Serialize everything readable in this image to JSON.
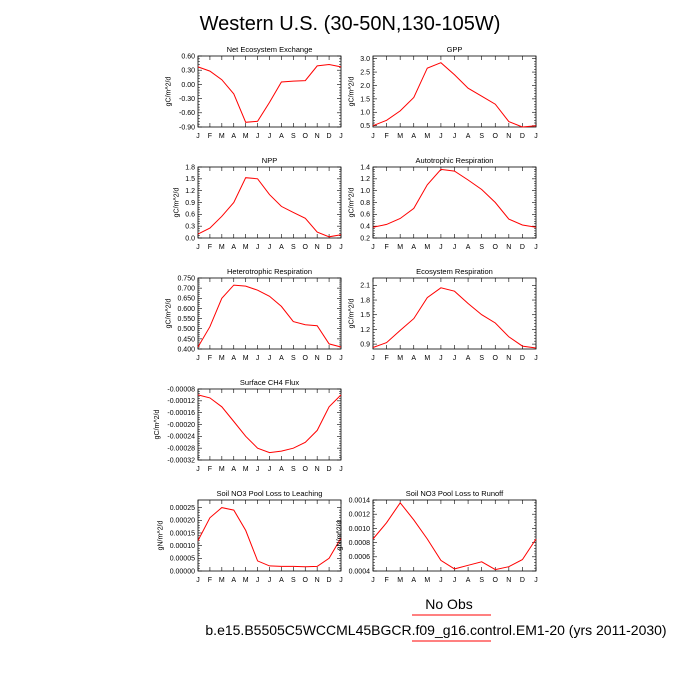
{
  "figure": {
    "title": "Western U.S. (30-50N,130-105W)",
    "line_color": "#ff0000",
    "legend": [
      {
        "label": "No Obs",
        "color": "#ff0000"
      },
      {
        "label": "b.e15.B5505C5WCCML45BGCR.f09_g16.control.EM1-20 (yrs 2011-2030)",
        "color": "#ff0000"
      }
    ]
  },
  "chart_data": [
    {
      "type": "line",
      "title": "Net Ecosystem Exchange",
      "ylabel": "gC/m^2/d",
      "categories": [
        "J",
        "F",
        "M",
        "A",
        "M",
        "J",
        "J",
        "A",
        "S",
        "O",
        "N",
        "D",
        "J"
      ],
      "ylim": [
        -0.9,
        0.6
      ],
      "yticks": [
        0.6,
        0.3,
        0.0,
        -0.3,
        -0.6,
        -0.9
      ],
      "ytick_labels": [
        "0.60",
        "0.30",
        "0.00",
        "-0.30",
        "-0.60",
        "-0.90"
      ],
      "values": [
        0.37,
        0.28,
        0.1,
        -0.2,
        -0.8,
        -0.78,
        -0.38,
        0.05,
        0.07,
        0.08,
        0.39,
        0.42,
        0.37
      ]
    },
    {
      "type": "line",
      "title": "GPP",
      "ylabel": "gC/m^2/d",
      "categories": [
        "J",
        "F",
        "M",
        "A",
        "M",
        "J",
        "J",
        "A",
        "S",
        "O",
        "N",
        "D",
        "J"
      ],
      "ylim": [
        0.45,
        3.1
      ],
      "yticks": [
        3.0,
        2.5,
        2.0,
        1.5,
        1.0,
        0.5
      ],
      "ytick_labels": [
        "3.0",
        "2.5",
        "2.0",
        "1.5",
        "1.0",
        "0.5"
      ],
      "values": [
        0.5,
        0.7,
        1.05,
        1.55,
        2.65,
        2.85,
        2.4,
        1.9,
        1.6,
        1.3,
        0.65,
        0.45,
        0.5
      ]
    },
    {
      "type": "line",
      "title": "NPP",
      "ylabel": "gC/m^2/d",
      "categories": [
        "J",
        "F",
        "M",
        "A",
        "M",
        "J",
        "J",
        "A",
        "S",
        "O",
        "N",
        "D",
        "J"
      ],
      "ylim": [
        0.0,
        1.8
      ],
      "yticks": [
        1.8,
        1.5,
        1.2,
        0.9,
        0.6,
        0.3,
        0.0
      ],
      "ytick_labels": [
        "1.8",
        "1.5",
        "1.2",
        "0.9",
        "0.6",
        "0.3",
        "0.0"
      ],
      "values": [
        0.1,
        0.25,
        0.55,
        0.9,
        1.53,
        1.5,
        1.1,
        0.8,
        0.65,
        0.5,
        0.15,
        0.03,
        0.08
      ]
    },
    {
      "type": "line",
      "title": "Autotrophic Respiration",
      "ylabel": "gC/m^2/d",
      "categories": [
        "J",
        "F",
        "M",
        "A",
        "M",
        "J",
        "J",
        "A",
        "S",
        "O",
        "N",
        "D",
        "J"
      ],
      "ylim": [
        0.2,
        1.4
      ],
      "yticks": [
        1.4,
        1.2,
        1.0,
        0.8,
        0.6,
        0.4,
        0.2
      ],
      "ytick_labels": [
        "1.4",
        "1.2",
        "1.0",
        "0.8",
        "0.6",
        "0.4",
        "0.2"
      ],
      "values": [
        0.38,
        0.43,
        0.53,
        0.7,
        1.1,
        1.36,
        1.33,
        1.18,
        1.02,
        0.8,
        0.52,
        0.42,
        0.38
      ]
    },
    {
      "type": "line",
      "title": "Heterotrophic Respiration",
      "ylabel": "gC/m^2/d",
      "categories": [
        "J",
        "F",
        "M",
        "A",
        "M",
        "J",
        "J",
        "A",
        "S",
        "O",
        "N",
        "D",
        "J"
      ],
      "ylim": [
        0.4,
        0.75
      ],
      "yticks": [
        0.75,
        0.7,
        0.65,
        0.6,
        0.55,
        0.5,
        0.45,
        0.4
      ],
      "ytick_labels": [
        "0.750",
        "0.700",
        "0.650",
        "0.600",
        "0.550",
        "0.500",
        "0.450",
        "0.400"
      ],
      "values": [
        0.41,
        0.51,
        0.65,
        0.715,
        0.71,
        0.69,
        0.66,
        0.61,
        0.535,
        0.52,
        0.515,
        0.425,
        0.41
      ]
    },
    {
      "type": "line",
      "title": "Ecosystem Respiration",
      "ylabel": "gC/m^2/d",
      "categories": [
        "J",
        "F",
        "M",
        "A",
        "M",
        "J",
        "J",
        "A",
        "S",
        "O",
        "N",
        "D",
        "J"
      ],
      "ylim": [
        0.8,
        2.25
      ],
      "yticks": [
        2.1,
        1.8,
        1.5,
        1.2,
        0.9
      ],
      "ytick_labels": [
        "2.1",
        "1.8",
        "1.5",
        "1.2",
        "0.9"
      ],
      "values": [
        0.83,
        0.93,
        1.18,
        1.42,
        1.85,
        2.05,
        1.98,
        1.73,
        1.5,
        1.33,
        1.05,
        0.86,
        0.82
      ]
    },
    {
      "type": "line",
      "title": "Surface CH4 Flux",
      "ylabel": "gC/m^2/d",
      "categories": [
        "J",
        "F",
        "M",
        "A",
        "M",
        "J",
        "J",
        "A",
        "S",
        "O",
        "N",
        "D",
        "J"
      ],
      "ylim": [
        -0.00032,
        -8e-05
      ],
      "yticks": [
        -8e-05,
        -0.00012,
        -0.00016,
        -0.0002,
        -0.00024,
        -0.00028,
        -0.00032
      ],
      "ytick_labels": [
        "-0.00008",
        "-0.00012",
        "-0.00016",
        "-0.00020",
        "-0.00024",
        "-0.00028",
        "-0.00032"
      ],
      "values": [
        -0.0001,
        -0.00011,
        -0.00014,
        -0.00019,
        -0.00024,
        -0.00028,
        -0.000295,
        -0.00029,
        -0.00028,
        -0.00026,
        -0.00022,
        -0.00014,
        -0.0001
      ]
    },
    {
      "type": "line",
      "title": "Soil NO3 Pool Loss to Leaching",
      "ylabel": "gN/m^2/d",
      "categories": [
        "J",
        "F",
        "M",
        "A",
        "M",
        "J",
        "J",
        "A",
        "S",
        "O",
        "N",
        "D",
        "J"
      ],
      "ylim": [
        0.0,
        0.00028
      ],
      "yticks": [
        0.00025,
        0.0002,
        0.00015,
        0.0001,
        5e-05,
        0.0
      ],
      "ytick_labels": [
        "0.00025",
        "0.00020",
        "0.00015",
        "0.00010",
        "0.00005",
        "0.00000"
      ],
      "values": [
        0.00012,
        0.00021,
        0.00025,
        0.00024,
        0.00016,
        4e-05,
        2e-05,
        1.8e-05,
        1.8e-05,
        1.7e-05,
        1.8e-05,
        5e-05,
        0.00013
      ]
    },
    {
      "type": "line",
      "title": "Soil NO3 Pool Loss to Runoff",
      "ylabel": "gN/m^2/d",
      "categories": [
        "J",
        "F",
        "M",
        "A",
        "M",
        "J",
        "J",
        "A",
        "S",
        "O",
        "N",
        "D",
        "J"
      ],
      "ylim": [
        0.0004,
        0.0014
      ],
      "yticks": [
        0.0014,
        0.0012,
        0.001,
        0.0008,
        0.0006,
        0.0004
      ],
      "ytick_labels": [
        "0.0014",
        "0.0012",
        "0.0010",
        "0.0008",
        "0.0006",
        "0.0004"
      ],
      "values": [
        0.00085,
        0.00108,
        0.00136,
        0.00112,
        0.00085,
        0.00055,
        0.00043,
        0.00048,
        0.00053,
        0.00042,
        0.00046,
        0.00056,
        0.00085
      ]
    }
  ]
}
